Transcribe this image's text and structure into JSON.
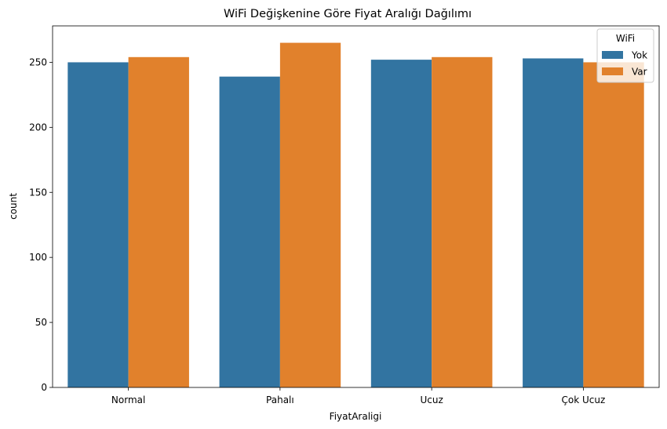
{
  "chart_data": {
    "type": "bar",
    "title": "WiFi Değişkenine Göre Fiyat Aralığı Dağılımı",
    "xlabel": "FiyatAraligi",
    "ylabel": "count",
    "categories": [
      "Normal",
      "Pahalı",
      "Ucuz",
      "Çok Ucuz"
    ],
    "series": [
      {
        "name": "Yok",
        "color": "#3274a1",
        "values": [
          250,
          239,
          252,
          253
        ]
      },
      {
        "name": "Var",
        "color": "#e1812c",
        "values": [
          254,
          265,
          254,
          250
        ]
      }
    ],
    "ylim": [
      0,
      278
    ],
    "yticks": [
      0,
      50,
      100,
      150,
      200,
      250
    ],
    "legend": {
      "title": "WiFi",
      "placement": "top-right"
    },
    "grid": false
  }
}
